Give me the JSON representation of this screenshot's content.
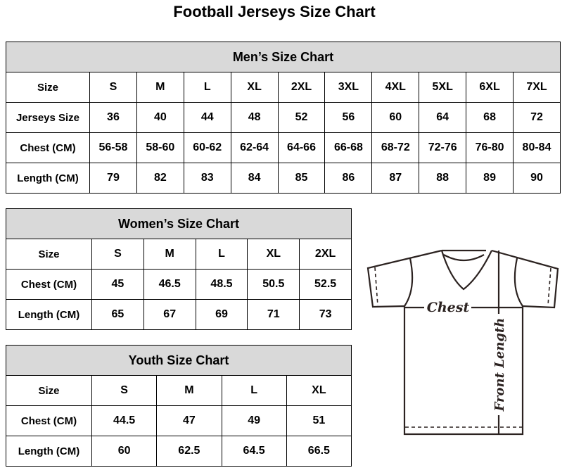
{
  "title": "Football Jerseys Size Chart",
  "men": {
    "title": "Men’s Size Chart",
    "rows": [
      [
        "Size",
        "S",
        "M",
        "L",
        "XL",
        "2XL",
        "3XL",
        "4XL",
        "5XL",
        "6XL",
        "7XL"
      ],
      [
        "Jerseys Size",
        "36",
        "40",
        "44",
        "48",
        "52",
        "56",
        "60",
        "64",
        "68",
        "72"
      ],
      [
        "Chest (CM)",
        "56-58",
        "58-60",
        "60-62",
        "62-64",
        "64-66",
        "66-68",
        "68-72",
        "72-76",
        "76-80",
        "80-84"
      ],
      [
        "Length (CM)",
        "79",
        "82",
        "83",
        "84",
        "85",
        "86",
        "87",
        "88",
        "89",
        "90"
      ]
    ]
  },
  "women": {
    "title": "Women’s Size Chart",
    "rows": [
      [
        "Size",
        "S",
        "M",
        "L",
        "XL",
        "2XL"
      ],
      [
        "Chest (CM)",
        "45",
        "46.5",
        "48.5",
        "50.5",
        "52.5"
      ],
      [
        "Length (CM)",
        "65",
        "67",
        "69",
        "71",
        "73"
      ]
    ]
  },
  "youth": {
    "title": "Youth Size Chart",
    "rows": [
      [
        "Size",
        "S",
        "M",
        "L",
        "XL"
      ],
      [
        "Chest (CM)",
        "44.5",
        "47",
        "49",
        "51"
      ],
      [
        "Length (CM)",
        "60",
        "62.5",
        "64.5",
        "66.5"
      ]
    ]
  },
  "diagram": {
    "chest_label": "Chest",
    "length_label": "Front Length"
  },
  "colors": {
    "header_bg": "#d9d9d9",
    "border": "#000000",
    "drawing": "#2b2220"
  }
}
